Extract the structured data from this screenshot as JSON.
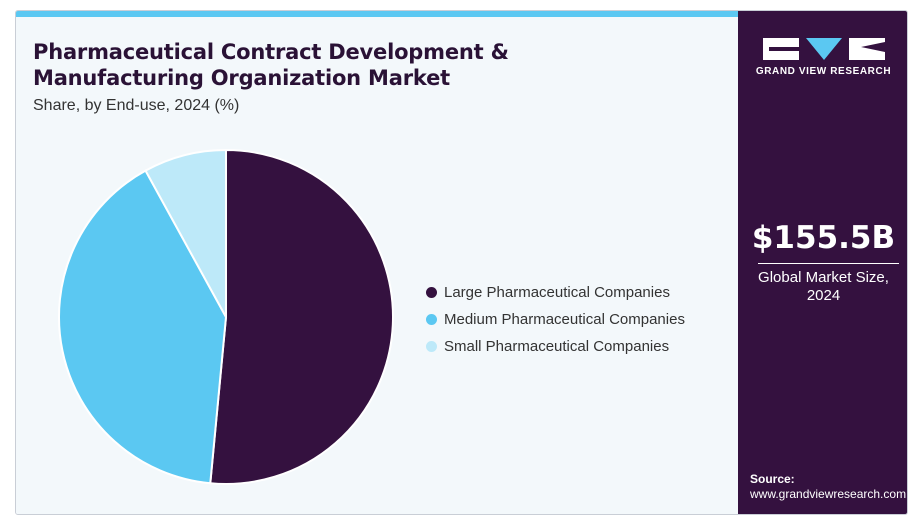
{
  "title_line1": "Pharmaceutical Contract Development &",
  "title_line2": "Manufacturing Organization Market",
  "subtitle": "Share, by End-use, 2024 (%)",
  "chart_data": {
    "type": "pie",
    "categories": [
      "Large Pharmaceutical Companies",
      "Medium Pharmaceutical Companies",
      "Small Pharmaceutical Companies"
    ],
    "values": [
      51.5,
      40.5,
      8.0
    ],
    "colors": [
      "#34113f",
      "#5bc8f2",
      "#bde9f9"
    ],
    "legend_position": "right"
  },
  "sidebar": {
    "logo_text": "GRAND VIEW RESEARCH",
    "stat_value": "$155.5B",
    "stat_label_line1": "Global Market Size,",
    "stat_label_line2": "2024",
    "source_label": "Source:",
    "source_url": "www.grandviewresearch.com"
  }
}
